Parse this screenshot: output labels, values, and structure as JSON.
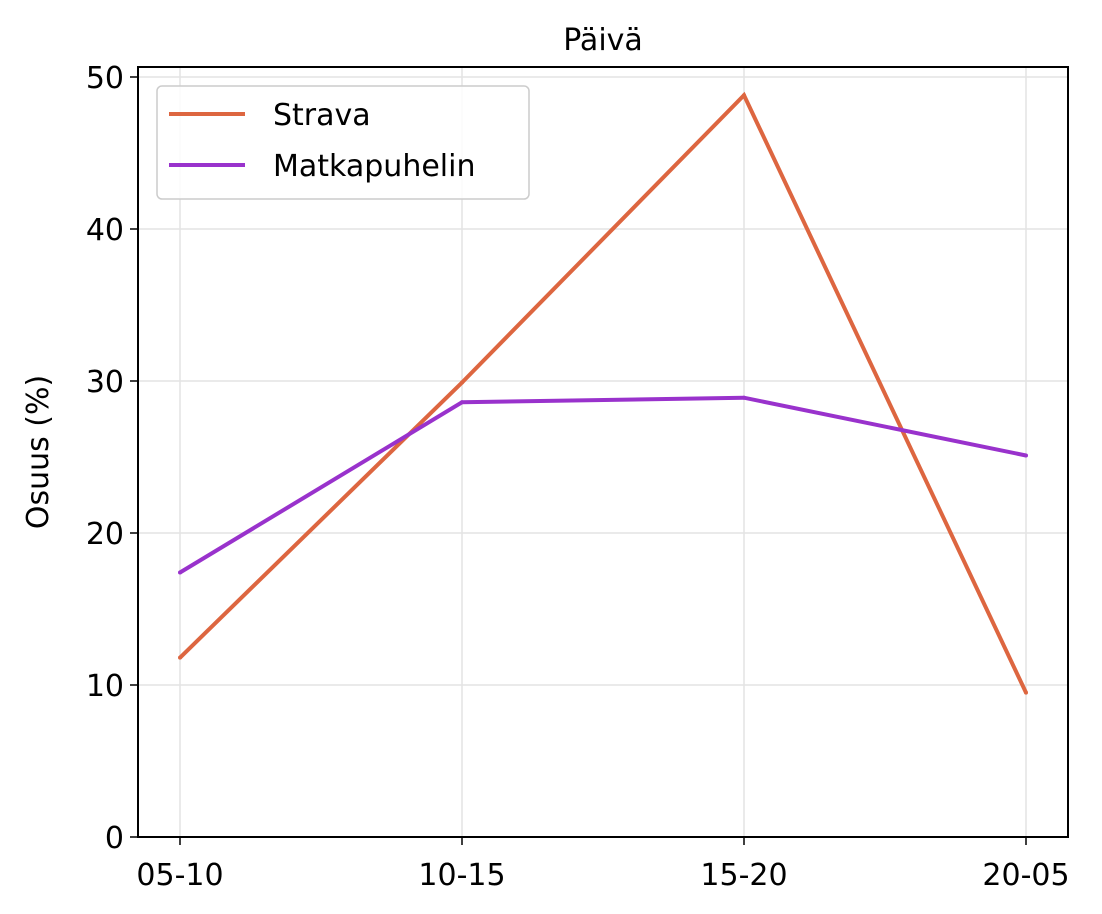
{
  "chart_data": {
    "type": "line",
    "title": "Päivä",
    "xlabel": "",
    "ylabel": "Osuus (%)",
    "categories": [
      "05-10",
      "10-15",
      "15-20",
      "20-05"
    ],
    "ylim": [
      0,
      50
    ],
    "yticks": [
      "0",
      "10",
      "20",
      "30",
      "40",
      "50"
    ],
    "grid": true,
    "legend_position": "top-left",
    "series": [
      {
        "name": "Strava",
        "color": "#dd6640",
        "values": [
          11.8,
          29.9,
          48.8,
          9.5
        ]
      },
      {
        "name": "Matkapuhelin",
        "color": "#9932cc",
        "values": [
          17.4,
          28.6,
          28.9,
          25.1
        ]
      }
    ]
  }
}
